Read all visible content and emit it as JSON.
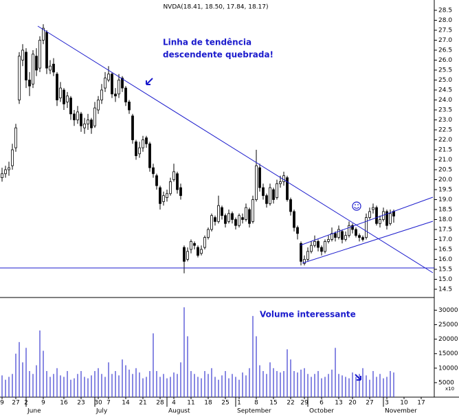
{
  "chart_data": {
    "type": "candlestick",
    "title": "NVDA(18.41, 18.50, 17.84, 18.17)",
    "annotations": [
      "Linha de tendência",
      "descendente quebrada!",
      "Volume interessante"
    ],
    "ohlc": [
      [
        20.1,
        20.6,
        19.9,
        20.3
      ],
      [
        20.3,
        20.7,
        20.1,
        20.5
      ],
      [
        20.5,
        20.9,
        20.2,
        20.6
      ],
      [
        20.7,
        21.8,
        20.5,
        21.5
      ],
      [
        21.6,
        22.8,
        21.4,
        22.6
      ],
      [
        24.0,
        26.4,
        23.8,
        26.2
      ],
      [
        26.0,
        26.8,
        25.7,
        26.5
      ],
      [
        26.4,
        26.6,
        24.6,
        25.0
      ],
      [
        25.0,
        25.4,
        24.2,
        24.7
      ],
      [
        24.8,
        26.5,
        24.6,
        26.3
      ],
      [
        26.2,
        26.6,
        25.2,
        25.5
      ],
      [
        25.6,
        27.2,
        25.4,
        27.0
      ],
      [
        27.0,
        27.8,
        26.8,
        27.6
      ],
      [
        27.4,
        27.5,
        25.3,
        25.6
      ],
      [
        25.5,
        26.0,
        25.3,
        25.7
      ],
      [
        25.8,
        26.1,
        25.2,
        25.4
      ],
      [
        25.3,
        25.4,
        23.7,
        24.0
      ],
      [
        24.1,
        24.9,
        23.9,
        24.6
      ],
      [
        24.5,
        24.6,
        23.5,
        23.8
      ],
      [
        23.9,
        24.4,
        23.6,
        24.2
      ],
      [
        24.1,
        24.2,
        23.0,
        23.3
      ],
      [
        23.3,
        23.5,
        22.7,
        23.0
      ],
      [
        23.0,
        23.7,
        22.8,
        23.4
      ],
      [
        23.3,
        23.4,
        22.4,
        22.7
      ],
      [
        22.6,
        23.1,
        22.3,
        22.8
      ],
      [
        22.8,
        23.3,
        22.5,
        23.0
      ],
      [
        23.0,
        23.1,
        22.3,
        22.6
      ],
      [
        22.7,
        23.9,
        22.6,
        23.6
      ],
      [
        23.5,
        24.2,
        23.3,
        24.0
      ],
      [
        24.0,
        24.8,
        23.8,
        24.5
      ],
      [
        24.6,
        25.4,
        24.4,
        25.1
      ],
      [
        25.0,
        25.7,
        24.9,
        25.3
      ],
      [
        25.3,
        25.4,
        24.1,
        24.3
      ],
      [
        24.3,
        24.6,
        23.9,
        24.2
      ],
      [
        24.3,
        25.3,
        24.1,
        25.0
      ],
      [
        25.1,
        25.2,
        24.4,
        24.6
      ],
      [
        24.6,
        24.7,
        23.7,
        23.9
      ],
      [
        23.9,
        24.0,
        23.3,
        23.5
      ],
      [
        23.2,
        23.3,
        21.8,
        22.0
      ],
      [
        21.9,
        22.0,
        21.0,
        21.2
      ],
      [
        21.3,
        21.9,
        21.1,
        21.6
      ],
      [
        21.6,
        22.2,
        21.4,
        22.0
      ],
      [
        22.1,
        22.2,
        21.6,
        21.8
      ],
      [
        21.8,
        21.9,
        20.4,
        20.6
      ],
      [
        20.6,
        20.8,
        20.1,
        20.3
      ],
      [
        20.2,
        20.3,
        19.5,
        19.7
      ],
      [
        19.6,
        19.7,
        18.5,
        18.8
      ],
      [
        18.9,
        19.4,
        18.7,
        19.2
      ],
      [
        19.1,
        19.5,
        18.9,
        19.3
      ],
      [
        19.3,
        20.1,
        19.2,
        19.9
      ],
      [
        20.0,
        20.8,
        19.9,
        20.4
      ],
      [
        20.3,
        20.4,
        19.3,
        19.5
      ],
      [
        19.6,
        19.8,
        19.0,
        19.2
      ],
      [
        16.6,
        16.7,
        15.3,
        15.9
      ],
      [
        16.0,
        16.6,
        15.9,
        16.4
      ],
      [
        16.5,
        17.0,
        16.3,
        16.9
      ],
      [
        16.8,
        16.9,
        16.5,
        16.7
      ],
      [
        16.6,
        16.7,
        16.1,
        16.2
      ],
      [
        16.3,
        16.7,
        16.2,
        16.5
      ],
      [
        16.6,
        17.2,
        16.5,
        17.1
      ],
      [
        17.1,
        17.6,
        17.0,
        17.5
      ],
      [
        17.5,
        18.3,
        17.4,
        18.2
      ],
      [
        18.1,
        18.2,
        17.7,
        17.9
      ],
      [
        17.9,
        19.2,
        17.8,
        18.7
      ],
      [
        18.6,
        18.7,
        18.0,
        18.2
      ],
      [
        18.2,
        18.3,
        17.6,
        17.8
      ],
      [
        17.9,
        18.5,
        17.8,
        18.3
      ],
      [
        18.3,
        18.4,
        17.8,
        18.0
      ],
      [
        18.0,
        18.1,
        17.5,
        17.7
      ],
      [
        17.7,
        18.3,
        17.6,
        18.2
      ],
      [
        18.1,
        18.3,
        17.8,
        18.0
      ],
      [
        18.0,
        18.8,
        17.9,
        18.6
      ],
      [
        18.5,
        18.6,
        17.6,
        17.8
      ],
      [
        17.9,
        19.2,
        17.8,
        19.0
      ],
      [
        19.0,
        21.5,
        18.9,
        20.7
      ],
      [
        20.6,
        20.8,
        19.4,
        19.6
      ],
      [
        19.6,
        19.8,
        19.0,
        19.2
      ],
      [
        19.2,
        19.3,
        18.6,
        18.8
      ],
      [
        18.8,
        19.8,
        18.7,
        19.6
      ],
      [
        19.5,
        19.6,
        18.8,
        19.0
      ],
      [
        19.1,
        20.0,
        19.0,
        19.8
      ],
      [
        19.8,
        20.2,
        19.6,
        19.9
      ],
      [
        19.9,
        20.4,
        19.7,
        20.2
      ],
      [
        20.1,
        20.2,
        18.9,
        19.0
      ],
      [
        19.0,
        19.1,
        18.2,
        18.4
      ],
      [
        18.4,
        18.5,
        17.4,
        17.6
      ],
      [
        17.6,
        17.7,
        17.0,
        17.3
      ],
      [
        16.8,
        16.9,
        15.7,
        15.9
      ],
      [
        15.8,
        16.2,
        15.7,
        16.0
      ],
      [
        16.0,
        16.6,
        15.9,
        16.4
      ],
      [
        16.4,
        16.9,
        16.3,
        16.7
      ],
      [
        16.7,
        17.2,
        16.6,
        16.9
      ],
      [
        16.9,
        17.0,
        16.4,
        16.6
      ],
      [
        16.6,
        16.7,
        16.2,
        16.4
      ],
      [
        16.4,
        17.0,
        16.3,
        16.9
      ],
      [
        16.9,
        17.2,
        16.8,
        17.0
      ],
      [
        17.0,
        17.6,
        16.9,
        17.3
      ],
      [
        17.3,
        17.4,
        16.9,
        17.1
      ],
      [
        17.1,
        17.7,
        17.0,
        17.5
      ],
      [
        17.4,
        17.5,
        16.8,
        17.0
      ],
      [
        17.0,
        17.4,
        16.9,
        17.2
      ],
      [
        17.2,
        17.9,
        17.1,
        17.7
      ],
      [
        17.7,
        17.8,
        17.3,
        17.5
      ],
      [
        17.5,
        17.6,
        17.1,
        17.2
      ],
      [
        17.2,
        17.3,
        16.9,
        17.1
      ],
      [
        17.1,
        17.2,
        16.9,
        17.0
      ],
      [
        17.1,
        18.3,
        17.0,
        18.1
      ],
      [
        18.1,
        18.6,
        18.0,
        18.4
      ],
      [
        18.5,
        18.8,
        18.3,
        18.6
      ],
      [
        18.6,
        18.7,
        17.7,
        17.8
      ],
      [
        17.8,
        18.2,
        17.6,
        18.0
      ],
      [
        18.0,
        18.6,
        17.9,
        18.4
      ],
      [
        18.4,
        18.5,
        17.5,
        17.7
      ],
      [
        17.8,
        18.5,
        17.7,
        18.3
      ],
      [
        18.41,
        18.5,
        17.84,
        18.17
      ]
    ],
    "ylim": [
      14.2,
      28.8
    ],
    "yticks": [
      14.5,
      {
        "value": 15,
        "label": "15.0"
      },
      15.5,
      {
        "value": 16,
        "label": "16.0"
      },
      16.5,
      {
        "value": 17,
        "label": "17.0"
      },
      17.5,
      {
        "value": 18,
        "label": "18.0"
      },
      18.5,
      {
        "value": 19,
        "label": "19.0"
      },
      19.5,
      {
        "value": 20,
        "label": "20.0"
      },
      20.5,
      {
        "value": 21,
        "label": "21.0"
      },
      21.5,
      {
        "value": 22,
        "label": "22.0"
      },
      22.5,
      {
        "value": 23,
        "label": "23.0"
      },
      23.5,
      {
        "value": 24,
        "label": "24.0"
      },
      24.5,
      {
        "value": 25,
        "label": "25.0"
      },
      25.5,
      {
        "value": 26,
        "label": "26.0"
      },
      26.5,
      {
        "value": 27,
        "label": "27.0"
      },
      27.5,
      {
        "value": 28,
        "label": "28.0"
      },
      28.5
    ],
    "up_color": "#ffffff",
    "down_color": "#000000",
    "xlim": [
      -0.6,
      125.4
    ],
    "xticks": [
      {
        "value": 0,
        "label": "9"
      },
      {
        "value": 4,
        "label": "27"
      },
      {
        "value": 7,
        "label": "2"
      },
      {
        "value": 12,
        "label": "9"
      },
      {
        "value": 18,
        "label": "16"
      },
      {
        "value": 23,
        "label": "23"
      },
      {
        "value": 28,
        "label": "30"
      },
      {
        "value": 31,
        "label": "7"
      },
      {
        "value": 36,
        "label": "14"
      },
      {
        "value": 41,
        "label": "21"
      },
      {
        "value": 46,
        "label": "28"
      },
      {
        "value": 50,
        "label": "4"
      },
      {
        "value": 55,
        "label": "11"
      },
      {
        "value": 60,
        "label": "18"
      },
      {
        "value": 65,
        "label": "25"
      },
      {
        "value": 69,
        "label": "1"
      },
      {
        "value": 74,
        "label": "8"
      },
      {
        "value": 79,
        "label": "15"
      },
      {
        "value": 84,
        "label": "22"
      },
      {
        "value": 88,
        "label": "29"
      },
      {
        "value": 93,
        "label": "6"
      },
      {
        "value": 98,
        "label": "13"
      },
      {
        "value": 102,
        "label": "20"
      },
      {
        "value": 107,
        "label": "27"
      },
      {
        "value": 112,
        "label": "3"
      },
      {
        "value": 117,
        "label": "10"
      },
      {
        "value": 122,
        "label": "17"
      }
    ],
    "month_ticks": [
      {
        "value": 7,
        "label": "June"
      },
      {
        "value": 27,
        "label": "July"
      },
      {
        "value": 48,
        "label": "August"
      },
      {
        "value": 68,
        "label": "September"
      },
      {
        "value": 89,
        "label": "October"
      },
      {
        "value": 111,
        "label": "November"
      }
    ],
    "volume": {
      "color": "#3a3ad0",
      "unit_label": "x10",
      "ylim": [
        0,
        32000
      ],
      "yticks": [
        5000,
        10000,
        15000,
        20000,
        25000,
        30000
      ],
      "values": [
        7500,
        6000,
        7000,
        8000,
        15000,
        19000,
        12000,
        17000,
        9000,
        8000,
        11000,
        23000,
        16000,
        9000,
        7000,
        8000,
        10000,
        7500,
        7000,
        9000,
        6000,
        6500,
        8000,
        9000,
        7000,
        6500,
        7500,
        9000,
        10000,
        8000,
        7000,
        12000,
        8000,
        9000,
        7500,
        13000,
        11000,
        9500,
        8000,
        10000,
        8500,
        6500,
        7000,
        9000,
        22000,
        9000,
        7000,
        8000,
        6500,
        7000,
        8500,
        8000,
        12000,
        31000,
        21000,
        9000,
        8000,
        7000,
        6500,
        9000,
        8000,
        10000,
        7000,
        6000,
        7500,
        9000,
        6500,
        8000,
        7000,
        6000,
        8500,
        7500,
        10000,
        28000,
        21000,
        11000,
        9000,
        8000,
        12000,
        10000,
        9000,
        8500,
        9000,
        16500,
        13000,
        9000,
        8500,
        9500,
        10000,
        8000,
        7000,
        8000,
        9000,
        6500,
        7000,
        8000,
        9500,
        17000,
        8000,
        7500,
        7000,
        6500,
        8500,
        7000,
        8000,
        10000,
        7500,
        6000,
        9000,
        7000,
        8000,
        6500,
        7000,
        9000,
        8500
      ]
    }
  }
}
